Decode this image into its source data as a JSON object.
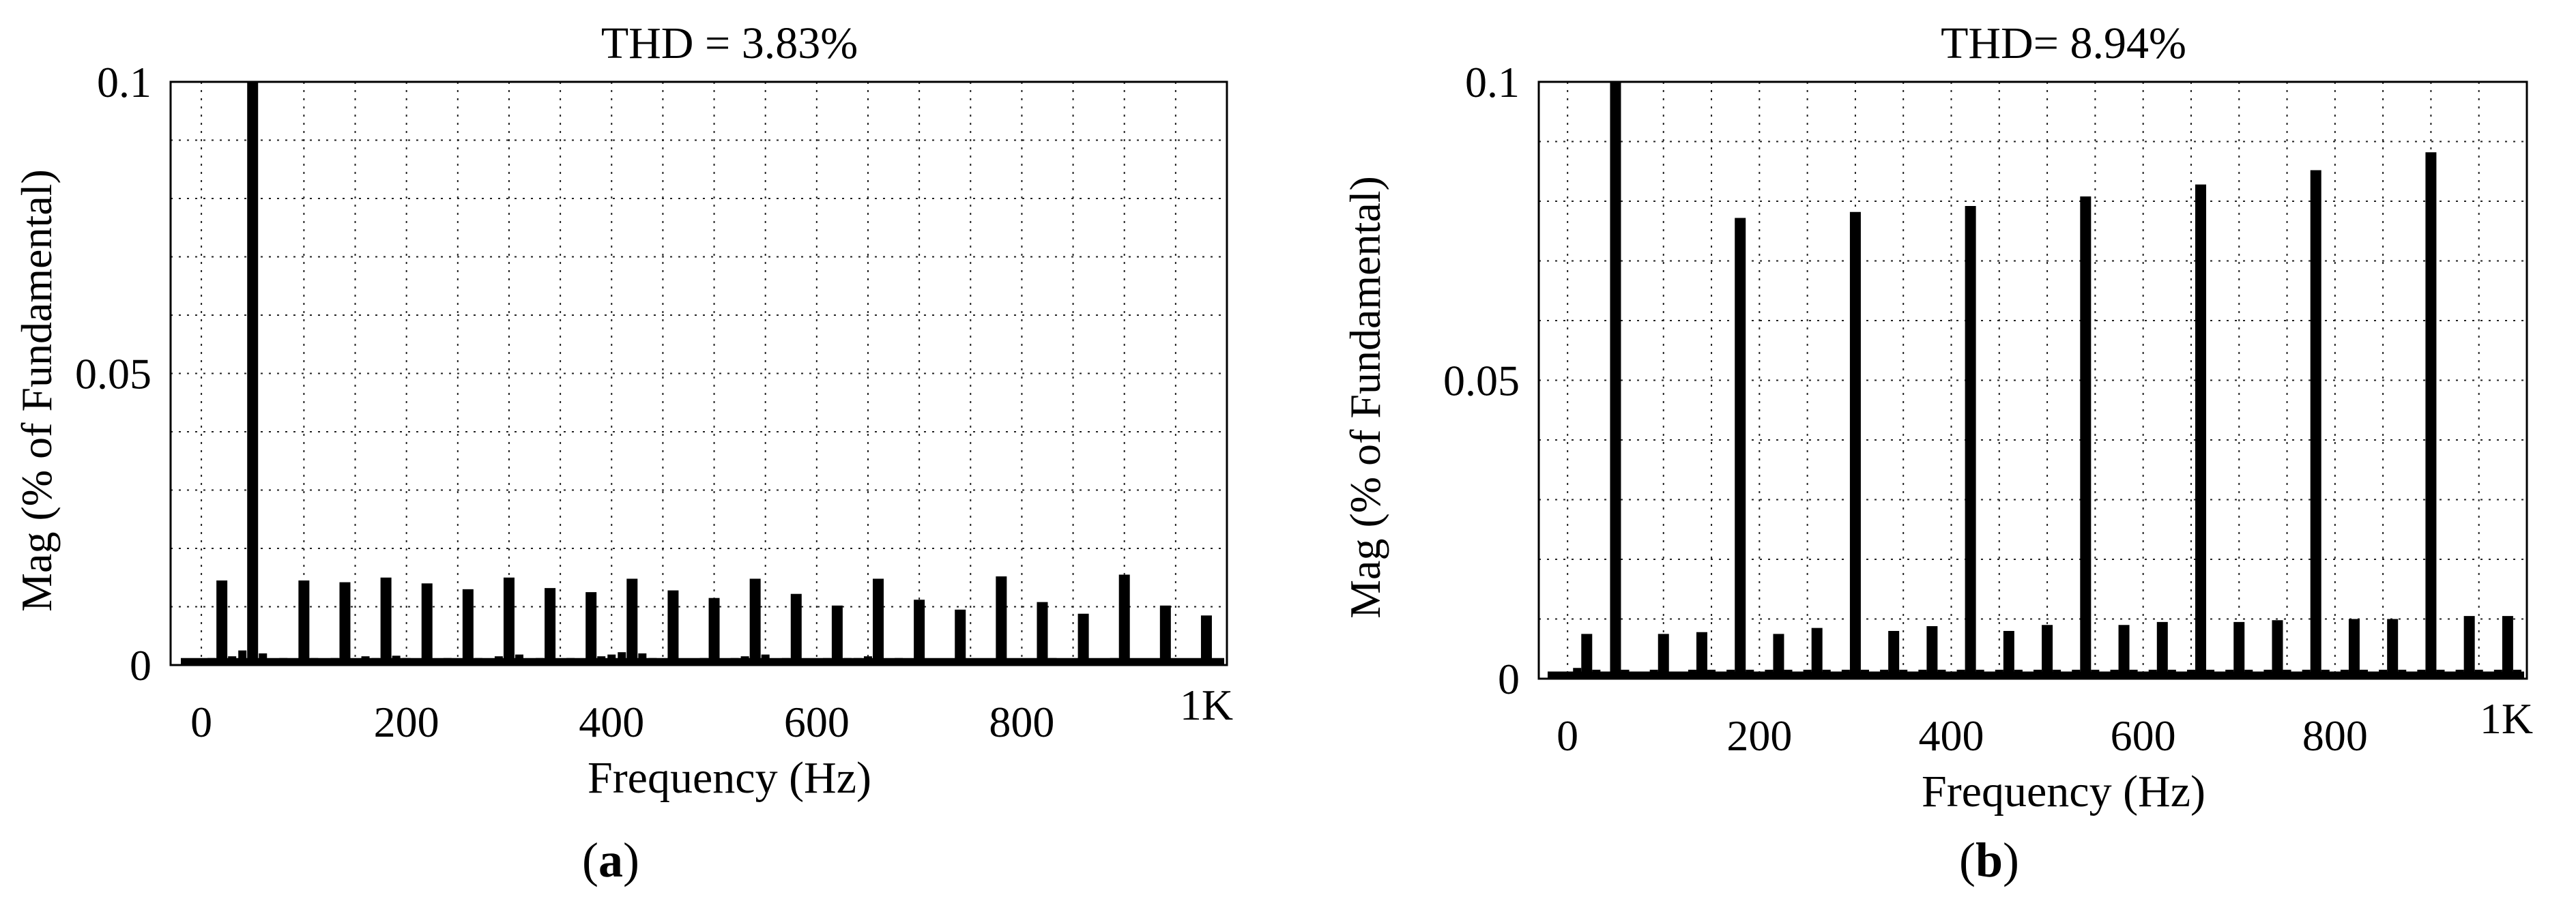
{
  "figure": {
    "panels": [
      {
        "caption_letter": "a"
      },
      {
        "caption_letter": "b"
      }
    ]
  },
  "chart_data": [
    {
      "type": "bar",
      "title": "THD = 3.83%",
      "xlabel": "Frequency (Hz)",
      "ylabel": "Mag (% of Fundamental)",
      "xlim": [
        -30,
        1000
      ],
      "ylim": [
        0,
        0.1
      ],
      "xticks": [
        "0",
        "200",
        "400",
        "600",
        "800",
        "1K"
      ],
      "xtick_values": [
        0,
        200,
        400,
        600,
        800,
        1000
      ],
      "yticks": [
        "0",
        "0.05",
        "0.1"
      ],
      "ytick_values": [
        0,
        0.05,
        0.1
      ],
      "grid": true,
      "x": [
        0,
        10,
        20,
        30,
        40,
        50,
        60,
        70,
        80,
        90,
        100,
        110,
        120,
        130,
        140,
        150,
        160,
        170,
        180,
        190,
        200,
        210,
        220,
        230,
        240,
        250,
        260,
        270,
        280,
        290,
        300,
        310,
        320,
        330,
        340,
        350,
        360,
        370,
        380,
        390,
        400,
        410,
        420,
        430,
        440,
        450,
        460,
        470,
        480,
        490,
        500,
        510,
        520,
        530,
        540,
        550,
        560,
        570,
        580,
        590,
        600,
        610,
        620,
        630,
        640,
        650,
        660,
        670,
        680,
        690,
        700,
        710,
        720,
        730,
        740,
        750,
        760,
        770,
        780,
        790,
        800,
        810,
        820,
        830,
        840,
        850,
        860,
        870,
        880,
        890,
        900,
        910,
        920,
        930,
        940,
        950,
        960,
        970,
        980,
        990
      ],
      "values": [
        0.0005,
        0.0012,
        0.0145,
        0.0015,
        0.0025,
        0.1,
        0.002,
        0.001,
        0.0012,
        0.0008,
        0.0145,
        0.0012,
        0.0008,
        0.0012,
        0.0142,
        0.0008,
        0.0015,
        0.0012,
        0.015,
        0.0016,
        0.0012,
        0.0008,
        0.014,
        0.001,
        0.0012,
        0.0008,
        0.013,
        0.0012,
        0.0008,
        0.0015,
        0.015,
        0.0018,
        0.001,
        0.0012,
        0.0132,
        0.0008,
        0.0012,
        0.0008,
        0.0125,
        0.0015,
        0.0018,
        0.0022,
        0.0148,
        0.002,
        0.0012,
        0.0008,
        0.0128,
        0.001,
        0.0008,
        0.0012,
        0.0115,
        0.001,
        0.0012,
        0.0015,
        0.0148,
        0.0018,
        0.0008,
        0.0012,
        0.0122,
        0.0008,
        0.0006,
        0.0012,
        0.0102,
        0.0012,
        0.0012,
        0.0015,
        0.0148,
        0.0008,
        0.0012,
        0.0008,
        0.0112,
        0.0008,
        0.0006,
        0.0008,
        0.0095,
        0.0006,
        0.0006,
        0.0008,
        0.0152,
        0.0008,
        0.0006,
        0.0008,
        0.0108,
        0.0012,
        0.0008,
        0.0006,
        0.0088,
        0.0008,
        0.0006,
        0.0012,
        0.0155,
        0.0008,
        0.0006,
        0.0008,
        0.0102,
        0.0006,
        0.0006,
        0.0008,
        0.0085,
        0.0006
      ]
    },
    {
      "type": "bar",
      "title": "THD= 8.94%",
      "xlabel": "Frequency (Hz)",
      "ylabel": "Mag (% of Fundamental)",
      "xlim": [
        -30,
        1000
      ],
      "ylim": [
        0,
        0.1
      ],
      "xticks": [
        "0",
        "200",
        "400",
        "600",
        "800",
        "1K"
      ],
      "xtick_values": [
        0,
        200,
        400,
        600,
        800,
        1000
      ],
      "yticks": [
        "0",
        "0.05",
        "0.1"
      ],
      "ytick_values": [
        0,
        0.05,
        0.1
      ],
      "grid": true,
      "x": [
        0,
        10,
        20,
        30,
        40,
        50,
        60,
        70,
        80,
        90,
        100,
        110,
        120,
        130,
        140,
        150,
        160,
        170,
        180,
        190,
        200,
        210,
        220,
        230,
        240,
        250,
        260,
        270,
        280,
        290,
        300,
        310,
        320,
        330,
        340,
        350,
        360,
        370,
        380,
        390,
        400,
        410,
        420,
        430,
        440,
        450,
        460,
        470,
        480,
        490,
        500,
        510,
        520,
        530,
        540,
        550,
        560,
        570,
        580,
        590,
        600,
        610,
        620,
        630,
        640,
        650,
        660,
        670,
        680,
        690,
        700,
        710,
        720,
        730,
        740,
        750,
        760,
        770,
        780,
        790,
        800,
        810,
        820,
        830,
        840,
        850,
        860,
        870,
        880,
        890,
        900,
        910,
        920,
        930,
        940,
        950,
        960,
        970,
        980,
        990
      ],
      "values": [
        0.0005,
        0.0018,
        0.0075,
        0.0015,
        0.0012,
        0.1,
        0.0015,
        0.0012,
        0.0012,
        0.0015,
        0.0075,
        0.0012,
        0.0012,
        0.0015,
        0.0078,
        0.0015,
        0.0012,
        0.0015,
        0.0772,
        0.0015,
        0.0012,
        0.0015,
        0.0075,
        0.0015,
        0.0012,
        0.0015,
        0.0085,
        0.0015,
        0.0012,
        0.0015,
        0.0782,
        0.0015,
        0.0012,
        0.0015,
        0.008,
        0.0015,
        0.0012,
        0.0015,
        0.0088,
        0.0015,
        0.0012,
        0.0015,
        0.0792,
        0.0015,
        0.0012,
        0.0015,
        0.008,
        0.0015,
        0.0012,
        0.0015,
        0.009,
        0.0015,
        0.0012,
        0.0015,
        0.0808,
        0.0015,
        0.0012,
        0.0015,
        0.009,
        0.0015,
        0.0012,
        0.0015,
        0.0095,
        0.0015,
        0.0012,
        0.0015,
        0.0828,
        0.0015,
        0.0012,
        0.0015,
        0.0095,
        0.0015,
        0.0012,
        0.0015,
        0.0098,
        0.0015,
        0.0012,
        0.0015,
        0.0852,
        0.0015,
        0.0012,
        0.0015,
        0.01,
        0.0015,
        0.0012,
        0.0015,
        0.01,
        0.0015,
        0.0012,
        0.0015,
        0.0882,
        0.0015,
        0.0012,
        0.0015,
        0.0105,
        0.0015,
        0.0012,
        0.0015,
        0.0105,
        0.0015
      ]
    }
  ]
}
